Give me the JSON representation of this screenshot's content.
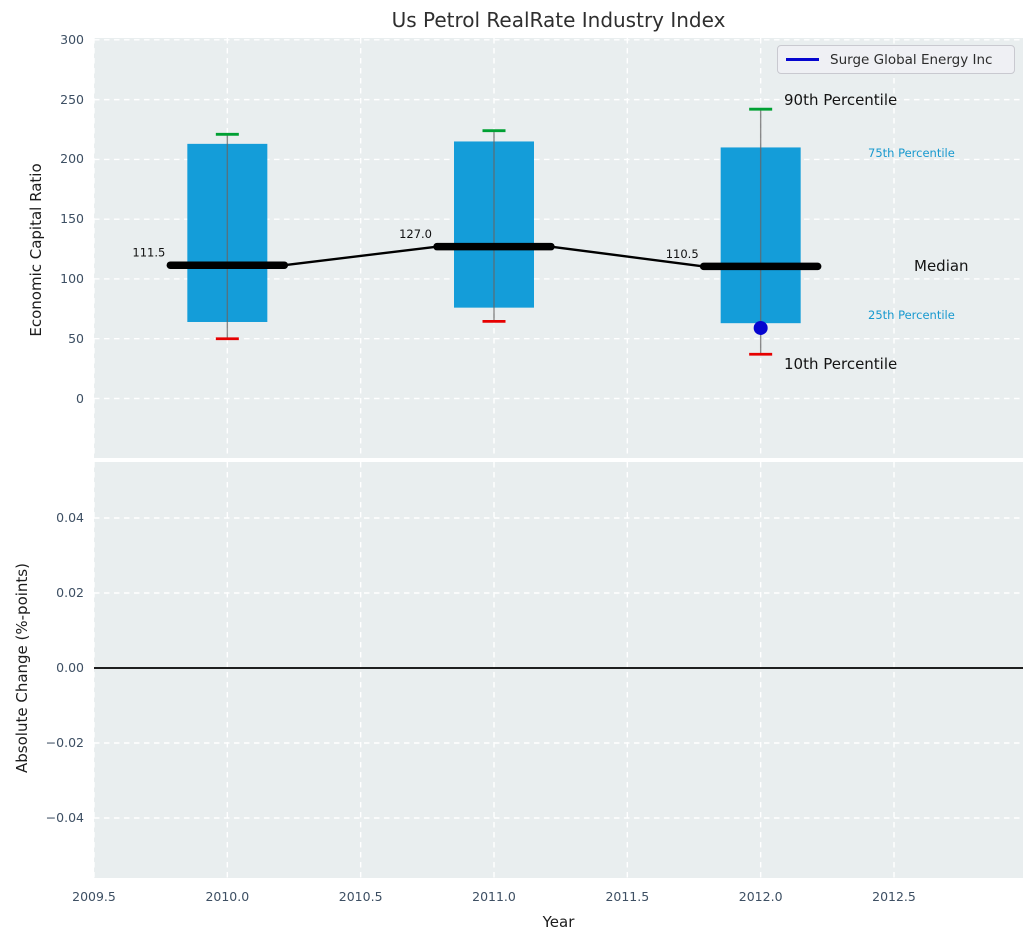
{
  "title": "Us Petrol RealRate Industry Index",
  "legend": {
    "label": "Surge Global Energy Inc"
  },
  "axes": {
    "xlabel": "Year",
    "xticks": [
      "2009.5",
      "2010.0",
      "2010.5",
      "2011.0",
      "2011.5",
      "2012.0",
      "2012.5"
    ],
    "xtick_values": [
      2009.5,
      2010,
      2010.5,
      2011,
      2011.5,
      2012,
      2012.5
    ],
    "top": {
      "ylabel": "Economic Capital Ratio",
      "yticks": [
        "300",
        "250",
        "200",
        "150",
        "100",
        "50",
        "0"
      ],
      "ytick_values": [
        300,
        250,
        200,
        150,
        100,
        50,
        0
      ]
    },
    "bottom": {
      "ylabel": "Absolute Change (%-points)",
      "yticks": [
        "0.04",
        "0.02",
        "0.00",
        "−0.02",
        "−0.04"
      ],
      "ytick_values": [
        0.04,
        0.02,
        0.0,
        -0.02,
        -0.04
      ]
    }
  },
  "annotations": {
    "p90": "90th Percentile",
    "p75": "75th Percentile",
    "median": "Median",
    "p25": "25th Percentile",
    "p10": "10th Percentile"
  },
  "colors": {
    "plot_bg": "#e9eeef",
    "grid": "#ffffff",
    "box_fill": "#149dd9",
    "whisker": "#666666",
    "cap_90": "#00a033",
    "cap_10": "#e60000",
    "median_line": "#000000",
    "accent_blue": "#0505cf",
    "label_blue": "#1899cf",
    "tick_text": "#3d4f63"
  },
  "chart_data": [
    {
      "type": "box",
      "title": "Us Petrol RealRate Industry Index",
      "xlabel": "Year",
      "ylabel": "Economic Capital Ratio",
      "xlim": [
        2009.5,
        2012.98
      ],
      "ylim": [
        -50,
        302
      ],
      "grid": true,
      "legend_position": "upper right",
      "categories": [
        2010,
        2011,
        2012
      ],
      "boxes": [
        {
          "year": 2010,
          "p10": 50,
          "p25": 64,
          "median": 111.5,
          "p75": 213,
          "p90": 221,
          "median_label": "111.5"
        },
        {
          "year": 2011,
          "p10": 64.5,
          "p25": 76,
          "median": 127.0,
          "p75": 215,
          "p90": 224,
          "median_label": "127.0"
        },
        {
          "year": 2012,
          "p10": 37,
          "p25": 63,
          "median": 110.5,
          "p75": 210,
          "p90": 242,
          "median_label": "110.5"
        }
      ],
      "median_line_series": {
        "x": [
          2010,
          2011,
          2012
        ],
        "y": [
          111.5,
          127.0,
          110.5
        ]
      },
      "series": [
        {
          "name": "Surge Global Energy Inc",
          "type": "scatter",
          "points": [
            {
              "x": 2012,
              "y": 59
            }
          ]
        }
      ]
    },
    {
      "type": "line",
      "ylabel": "Absolute Change (%-points)",
      "xlabel": "Year",
      "xlim": [
        2009.5,
        2012.98
      ],
      "ylim": [
        -0.056,
        0.055
      ],
      "grid": true,
      "zero_line": 0.0,
      "series": []
    }
  ]
}
